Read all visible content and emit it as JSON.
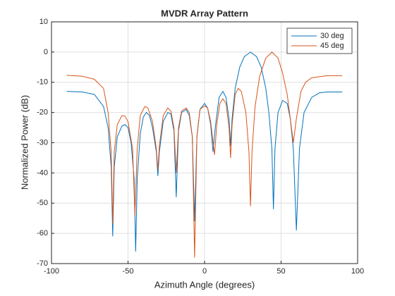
{
  "chart_data": {
    "type": "line",
    "title": "MVDR Array Pattern",
    "x_label": "Azimuth Angle (degrees)",
    "y_label": "Normalized Power (dB)",
    "xlim": [
      -100,
      100
    ],
    "xticks": [
      -100,
      -50,
      0,
      50,
      100
    ],
    "ylim": [
      -70,
      10
    ],
    "yticks": [
      -70,
      -60,
      -50,
      -40,
      -30,
      -20,
      -10,
      0,
      10
    ],
    "grid": true,
    "legend_position": "northeast",
    "series": [
      {
        "name": "30 deg",
        "color": "#0072BD",
        "x": [
          -90,
          -80,
          -72,
          -66,
          -63,
          -61,
          -60,
          -59,
          -57,
          -54,
          -52,
          -50,
          -48,
          -46,
          -45,
          -44,
          -42,
          -40,
          -38,
          -36,
          -34,
          -31.5,
          -30.5,
          -29.5,
          -27,
          -24,
          -22,
          -20,
          -18.5,
          -17,
          -15,
          -12,
          -10,
          -8,
          -6.5,
          -5,
          -3,
          0,
          2,
          4,
          5.5,
          7,
          9.5,
          12,
          14,
          16,
          17,
          18,
          20,
          23,
          26,
          30,
          34,
          37,
          40,
          42,
          44,
          45,
          46,
          48,
          51,
          54,
          56,
          58,
          60,
          62,
          65,
          70,
          75,
          80,
          90
        ],
        "values": [
          -13,
          -13.2,
          -14,
          -18,
          -25,
          -38,
          -61,
          -38,
          -28,
          -24.5,
          -24,
          -25,
          -30,
          -42,
          -66,
          -42,
          -27,
          -21.5,
          -20,
          -21,
          -25,
          -33,
          -41,
          -33,
          -23,
          -20,
          -20.5,
          -26,
          -48,
          -26,
          -20,
          -19,
          -21,
          -28,
          -56,
          -28,
          -19,
          -17,
          -18.5,
          -24,
          -33,
          -25,
          -15,
          -13,
          -15,
          -22,
          -31,
          -22,
          -12,
          -5,
          -1.5,
          0,
          -1.5,
          -5,
          -12,
          -20,
          -32,
          -52,
          -32,
          -20,
          -16,
          -17,
          -22,
          -32,
          -59,
          -32,
          -20,
          -15,
          -13.5,
          -13.2,
          -13.2
        ]
      },
      {
        "name": "45 deg",
        "color": "#D95319",
        "x": [
          -90,
          -80,
          -72,
          -66,
          -63,
          -61,
          -60,
          -59,
          -57,
          -54,
          -52,
          -50,
          -47,
          -45.5,
          -44,
          -42,
          -39,
          -37,
          -34,
          -31.5,
          -30.5,
          -29.5,
          -27,
          -24,
          -22,
          -20,
          -18.5,
          -17,
          -15,
          -12,
          -10,
          -8,
          -6.5,
          -5,
          -3,
          0,
          2,
          4,
          6.5,
          8,
          10,
          12,
          14,
          16,
          17,
          18,
          20,
          22,
          24,
          27,
          29,
          30,
          31,
          33,
          36,
          40,
          44,
          48,
          51,
          54,
          56,
          58,
          60,
          63,
          66,
          70,
          80,
          90
        ],
        "values": [
          -7.7,
          -8,
          -9,
          -12,
          -20,
          -33,
          -57,
          -33,
          -24,
          -21,
          -21.2,
          -23,
          -32,
          -54,
          -32,
          -21,
          -18,
          -18.5,
          -23,
          -32,
          -39,
          -31,
          -21,
          -18.5,
          -19.5,
          -25,
          -40,
          -25,
          -19.5,
          -18.5,
          -20,
          -28,
          -68,
          -28,
          -19,
          -17.8,
          -18.5,
          -23,
          -34,
          -24,
          -17,
          -15.5,
          -17,
          -25,
          -35,
          -24,
          -14,
          -12,
          -13,
          -20,
          -33,
          -51,
          -33,
          -18,
          -8,
          -2,
          0,
          -2,
          -7,
          -14,
          -22,
          -30,
          -22,
          -13,
          -10,
          -8.5,
          -7.8,
          -7.8
        ]
      }
    ]
  }
}
